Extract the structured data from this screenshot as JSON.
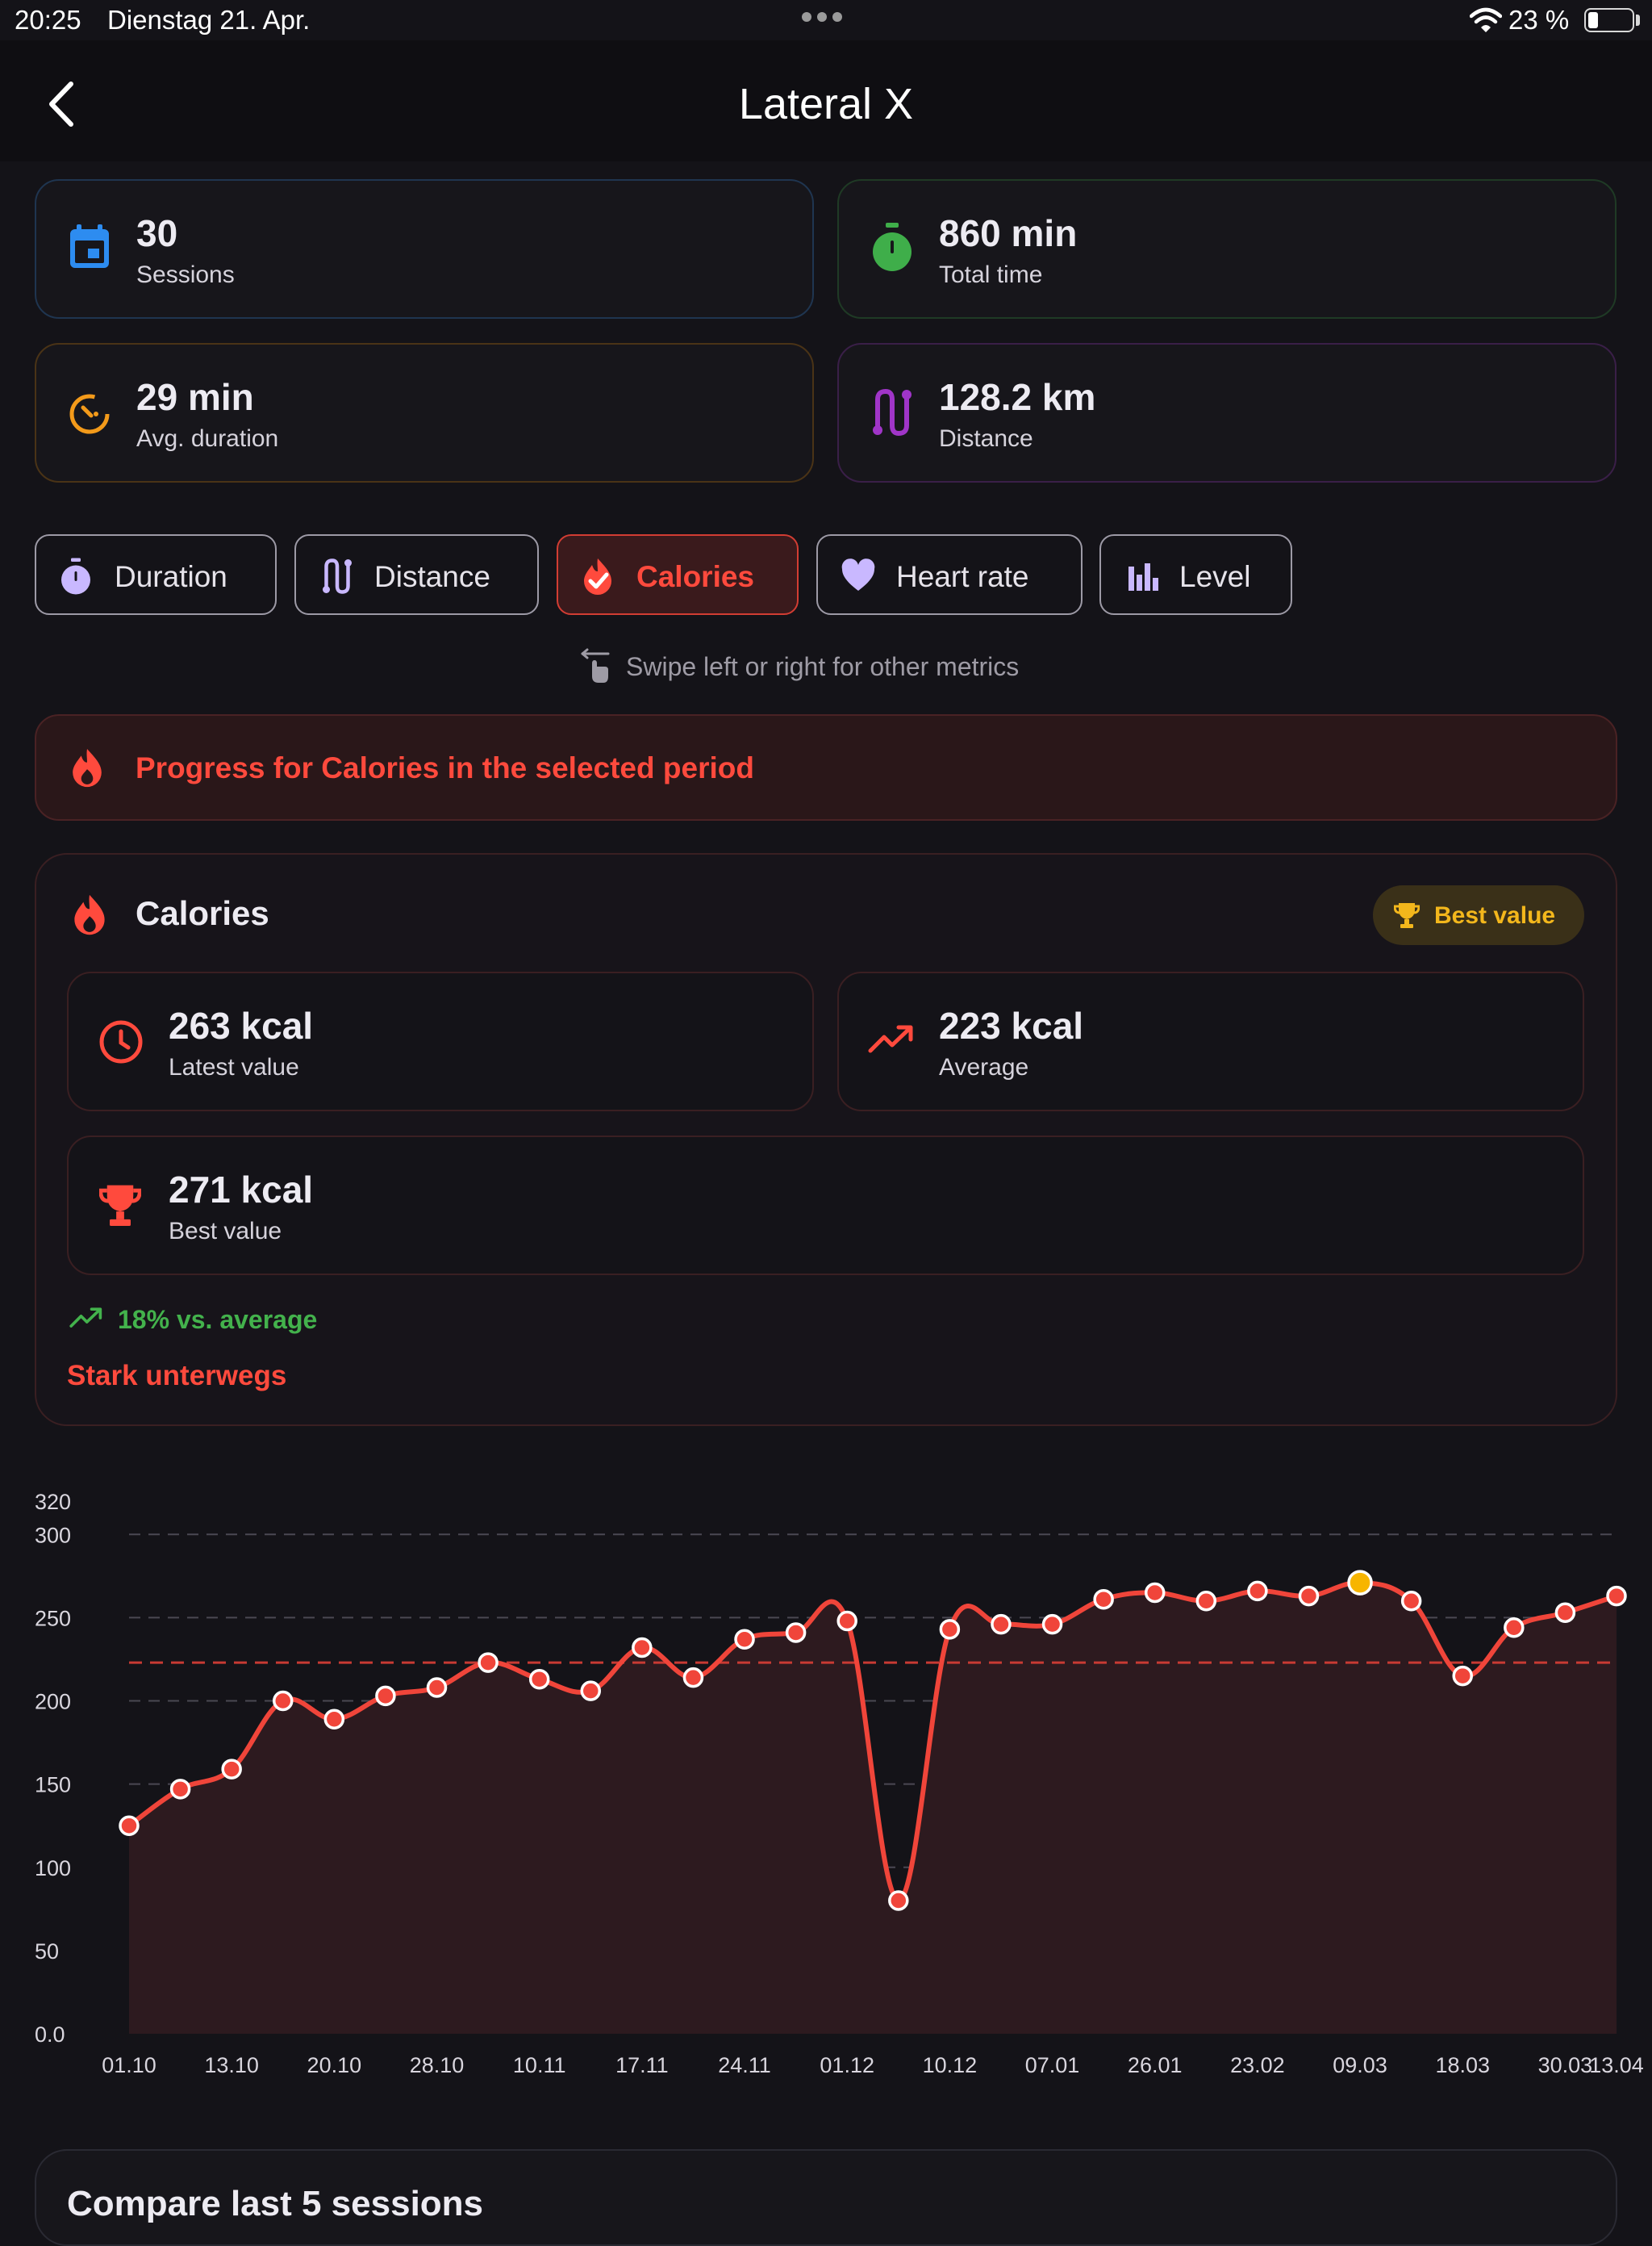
{
  "status_bar": {
    "time": "20:25",
    "date": "Dienstag 21. Apr.",
    "battery": "23 %",
    "battery_level": 0.23
  },
  "header": {
    "title": "Lateral X"
  },
  "stats": [
    {
      "value": "30",
      "label": "Sessions",
      "icon": "calendar-icon",
      "color": "#2d8cf0"
    },
    {
      "value": "860 min",
      "label": "Total time",
      "icon": "stopwatch-icon",
      "color": "#3fae4a"
    },
    {
      "value": "29 min",
      "label": "Avg. duration",
      "icon": "timer-icon",
      "color": "#f39a1a"
    },
    {
      "value": "128.2 km",
      "label": "Distance",
      "icon": "route-icon",
      "color": "#a035c8"
    }
  ],
  "chips": [
    {
      "label": "Duration",
      "icon": "stopwatch-icon",
      "active": false
    },
    {
      "label": "Distance",
      "icon": "route-icon",
      "active": false
    },
    {
      "label": "Calories",
      "icon": "flame-check-icon",
      "active": true
    },
    {
      "label": "Heart rate",
      "icon": "heart-icon",
      "active": false
    },
    {
      "label": "Level",
      "icon": "bars-icon",
      "active": false
    }
  ],
  "swipe_hint": "Swipe left or right for other metrics",
  "progress_banner": "Progress for Calories in the selected period",
  "metric": {
    "title": "Calories",
    "badge": "Best value",
    "latest": {
      "value": "263 kcal",
      "label": "Latest value"
    },
    "average": {
      "value": "223 kcal",
      "label": "Average"
    },
    "best": {
      "value": "271 kcal",
      "label": "Best value"
    },
    "trend": "18% vs. average",
    "status": "Stark unterwegs"
  },
  "colors": {
    "accent": "#ff4a3d",
    "best_point": "#f7b500",
    "positive": "#43b24c"
  },
  "chart_data": {
    "type": "area",
    "x": [
      "01.10",
      "07.10",
      "13.10",
      "17.10",
      "20.10",
      "24.10",
      "28.10",
      "04.11",
      "10.11",
      "14.11",
      "17.11",
      "21.11",
      "24.11",
      "28.11",
      "01.12",
      "05.12",
      "10.12",
      "14.12",
      "07.01",
      "14.01",
      "26.01",
      "02.02",
      "23.02",
      "02.03",
      "09.03",
      "12.03",
      "18.03",
      "24.03",
      "30.03",
      "13.04"
    ],
    "values": [
      125,
      147,
      159,
      200,
      189,
      203,
      208,
      223,
      213,
      206,
      232,
      214,
      237,
      241,
      248,
      80,
      243,
      246,
      246,
      261,
      265,
      260,
      266,
      263,
      271,
      260,
      215,
      244,
      253,
      263
    ],
    "x_tick_labels": [
      "01.10",
      "13.10",
      "20.10",
      "28.10",
      "10.11",
      "17.11",
      "24.11",
      "01.12",
      "10.12",
      "07.01",
      "26.01",
      "23.02",
      "09.03",
      "18.03",
      "30.03",
      "13.04"
    ],
    "y_tick_labels": [
      "0.0",
      "50",
      "100",
      "150",
      "200",
      "250",
      "300",
      "320"
    ],
    "ylim": [
      0,
      320
    ],
    "average_line": 223,
    "best_index": 24,
    "grid": true
  },
  "compare": {
    "title": "Compare last 5 sessions"
  }
}
